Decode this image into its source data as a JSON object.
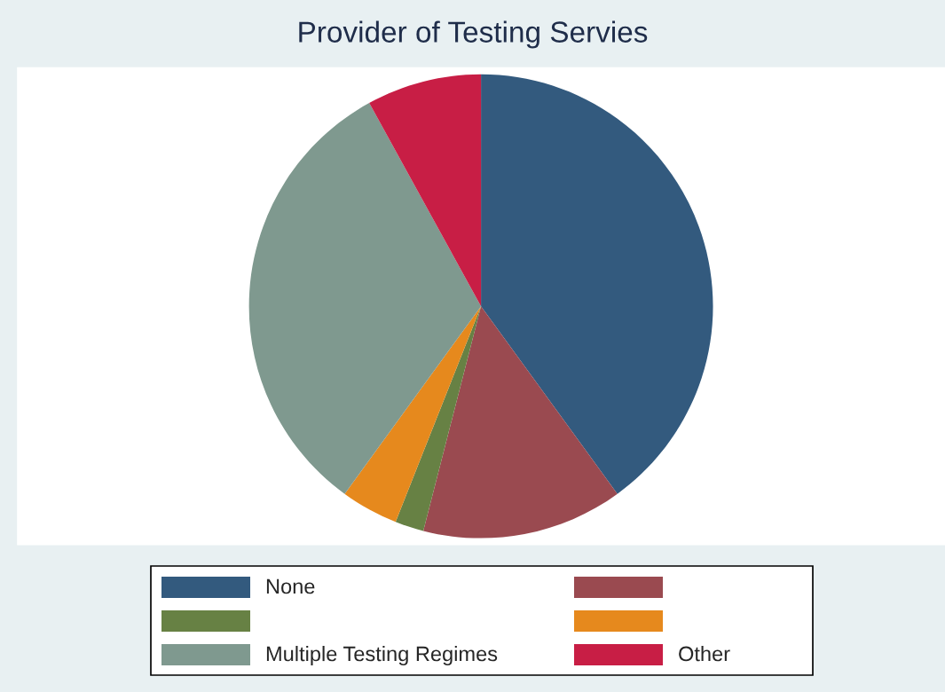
{
  "chart_data": {
    "type": "pie",
    "title": "Provider of Testing Servies",
    "categories": [
      "None",
      null,
      null,
      null,
      "Multiple Testing Regimes",
      "Other"
    ],
    "values": [
      40,
      14,
      2,
      4,
      32,
      8
    ],
    "colors": [
      "#335a7e",
      "#9a4a50",
      "#678144",
      "#e6891d",
      "#7f998f",
      "#c81e45"
    ],
    "legend": "bottom"
  }
}
